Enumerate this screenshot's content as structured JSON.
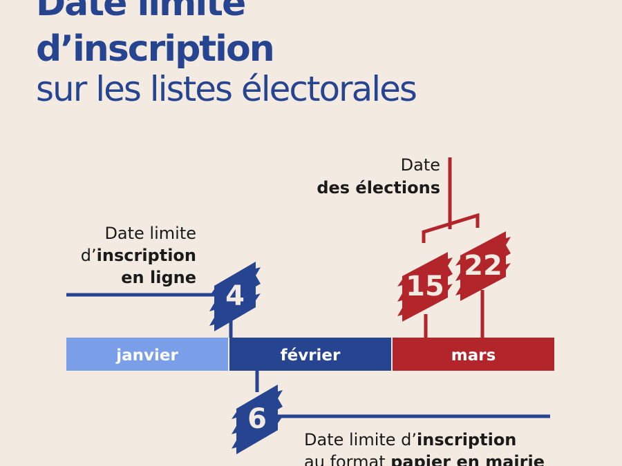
{
  "title": {
    "line1": "Date limite",
    "line2": "d’inscription",
    "line3": "sur les listes électorales"
  },
  "colors": {
    "background": "#f3ebe2",
    "dark_blue": "#26448f",
    "light_blue": "#7a9fe8",
    "red": "#b2262b"
  },
  "months": [
    {
      "label": "janvier",
      "color": "#7a9fe8"
    },
    {
      "label": "février",
      "color": "#26448f"
    },
    {
      "label": "mars",
      "color": "#b2262b"
    }
  ],
  "deadlines": {
    "online": {
      "day": "4",
      "line1": "Date limite",
      "line2_pre": "d’",
      "line2_bold": "inscription",
      "line3_bold": "en ligne"
    },
    "paper": {
      "day": "6",
      "line1_pre": "Date limite d’",
      "line1_bold": "inscription",
      "line2_pre": "au format ",
      "line2_bold": "papier en mairie"
    }
  },
  "elections": {
    "line1": "Date",
    "line2_bold": "des élections",
    "days": [
      "15",
      "22"
    ]
  }
}
